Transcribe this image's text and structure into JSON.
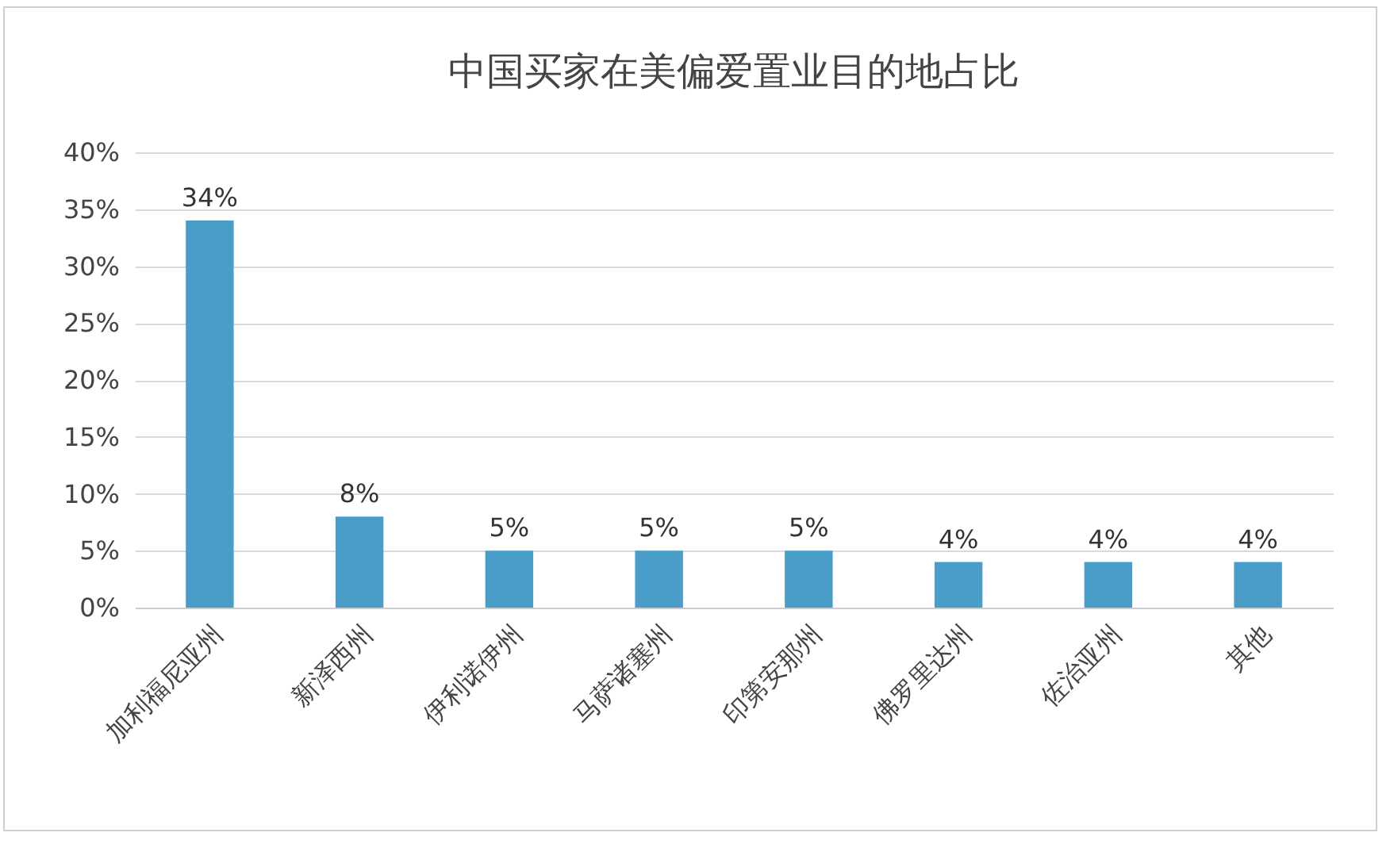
{
  "chart_data": {
    "type": "bar",
    "title": "中国买家在美偏爱置业目的地占比",
    "categories": [
      "加利福尼亚州",
      "新泽西州",
      "伊利诺伊州",
      "马萨诸塞州",
      "印第安那州",
      "佛罗里达州",
      "佐治亚州",
      "其他"
    ],
    "values": [
      34,
      8,
      5,
      5,
      5,
      4,
      4,
      4
    ],
    "value_labels": [
      "34%",
      "8%",
      "5%",
      "5%",
      "5%",
      "4%",
      "4%",
      "4%"
    ],
    "color": "#4a9cc9",
    "ylim": [
      0,
      40
    ],
    "yticks": [
      {
        "value": 0,
        "label": "0%"
      },
      {
        "value": 5,
        "label": "5%"
      },
      {
        "value": 10,
        "label": "10%"
      },
      {
        "value": 15,
        "label": "15%"
      },
      {
        "value": 20,
        "label": "20%"
      },
      {
        "value": 25,
        "label": "25%"
      },
      {
        "value": 30,
        "label": "30%"
      },
      {
        "value": 35,
        "label": "35%"
      },
      {
        "value": 40,
        "label": "40%"
      }
    ],
    "grid": "y"
  }
}
